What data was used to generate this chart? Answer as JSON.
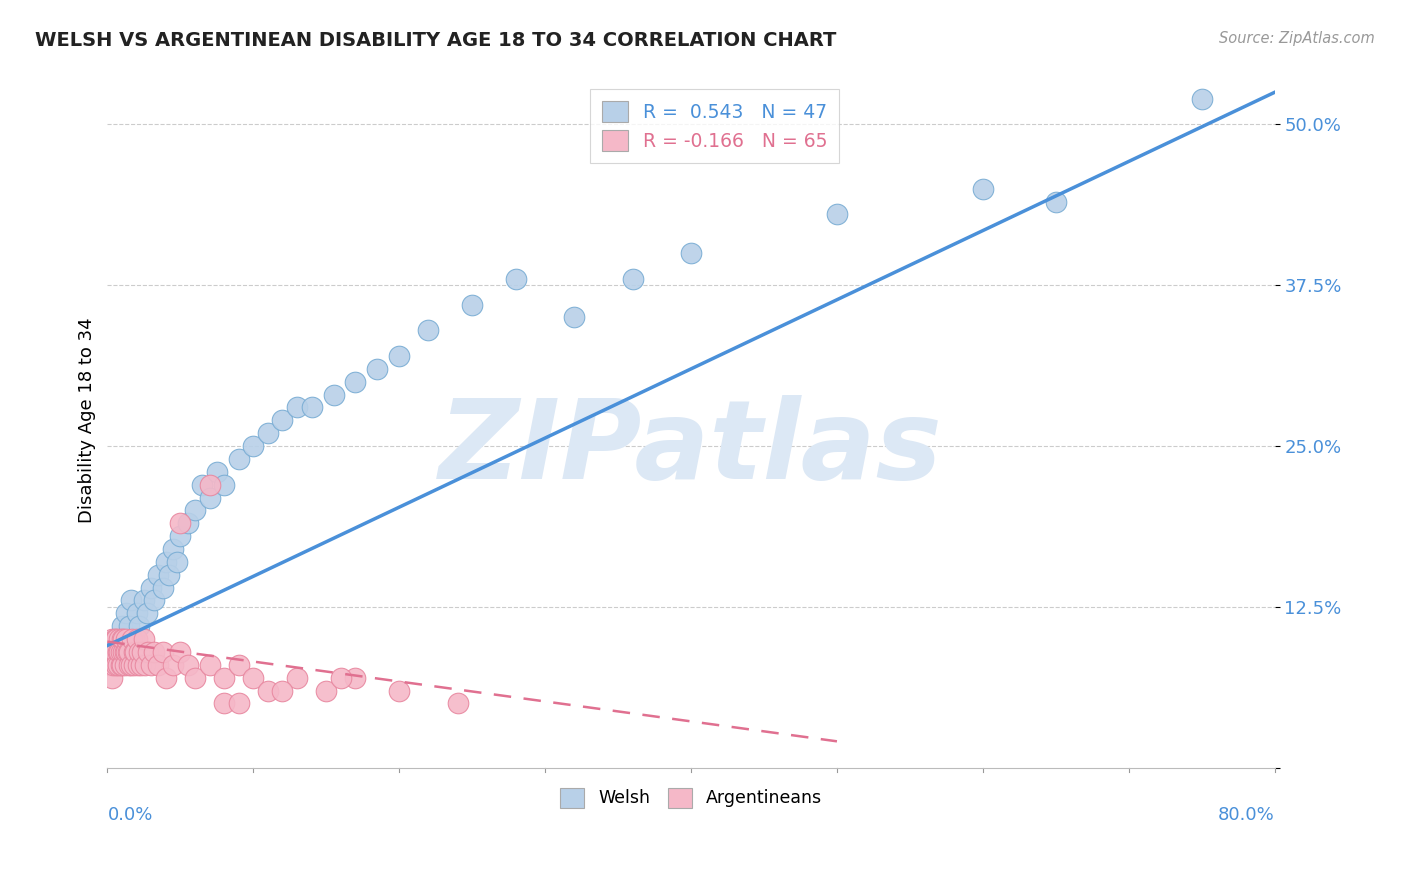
{
  "title": "WELSH VS ARGENTINEAN DISABILITY AGE 18 TO 34 CORRELATION CHART",
  "source_text": "Source: ZipAtlas.com",
  "ylabel": "Disability Age 18 to 34",
  "xlim": [
    0.0,
    0.8
  ],
  "ylim": [
    0.0,
    0.54
  ],
  "yticks": [
    0.0,
    0.125,
    0.25,
    0.375,
    0.5
  ],
  "ytick_labels": [
    "",
    "12.5%",
    "25.0%",
    "37.5%",
    "50.0%"
  ],
  "welsh_color": "#b8d0e8",
  "arg_color": "#f5b8c8",
  "welsh_edge": "#7aadd4",
  "arg_edge": "#e888a0",
  "line_welsh_color": "#4a90d9",
  "line_arg_color": "#e07090",
  "legend_welsh_label": "R =  0.543   N = 47",
  "legend_arg_label": "R = -0.166   N = 65",
  "watermark_text": "ZIPatlas",
  "watermark_color": "#dce8f5",
  "welsh_x": [
    0.005,
    0.008,
    0.01,
    0.012,
    0.013,
    0.015,
    0.016,
    0.018,
    0.02,
    0.022,
    0.025,
    0.027,
    0.03,
    0.032,
    0.035,
    0.038,
    0.04,
    0.042,
    0.045,
    0.048,
    0.05,
    0.055,
    0.06,
    0.065,
    0.07,
    0.075,
    0.08,
    0.09,
    0.1,
    0.11,
    0.12,
    0.13,
    0.14,
    0.155,
    0.17,
    0.185,
    0.2,
    0.22,
    0.25,
    0.28,
    0.32,
    0.36,
    0.4,
    0.5,
    0.6,
    0.65,
    0.75
  ],
  "welsh_y": [
    0.1,
    0.09,
    0.11,
    0.1,
    0.12,
    0.11,
    0.13,
    0.1,
    0.12,
    0.11,
    0.13,
    0.12,
    0.14,
    0.13,
    0.15,
    0.14,
    0.16,
    0.15,
    0.17,
    0.16,
    0.18,
    0.19,
    0.2,
    0.22,
    0.21,
    0.23,
    0.22,
    0.24,
    0.25,
    0.26,
    0.27,
    0.28,
    0.28,
    0.29,
    0.3,
    0.31,
    0.32,
    0.34,
    0.36,
    0.38,
    0.35,
    0.38,
    0.4,
    0.43,
    0.45,
    0.44,
    0.52
  ],
  "arg_x": [
    0.001,
    0.002,
    0.003,
    0.003,
    0.004,
    0.004,
    0.005,
    0.005,
    0.006,
    0.006,
    0.007,
    0.007,
    0.008,
    0.008,
    0.009,
    0.009,
    0.01,
    0.01,
    0.011,
    0.011,
    0.012,
    0.012,
    0.013,
    0.013,
    0.014,
    0.015,
    0.015,
    0.016,
    0.017,
    0.018,
    0.018,
    0.019,
    0.02,
    0.021,
    0.022,
    0.023,
    0.024,
    0.025,
    0.026,
    0.028,
    0.03,
    0.032,
    0.035,
    0.038,
    0.04,
    0.045,
    0.05,
    0.055,
    0.06,
    0.07,
    0.08,
    0.09,
    0.1,
    0.11,
    0.13,
    0.15,
    0.17,
    0.2,
    0.24,
    0.16,
    0.05,
    0.08,
    0.12,
    0.09,
    0.07
  ],
  "arg_y": [
    0.09,
    0.08,
    0.1,
    0.07,
    0.09,
    0.08,
    0.1,
    0.09,
    0.08,
    0.1,
    0.09,
    0.08,
    0.1,
    0.09,
    0.08,
    0.09,
    0.1,
    0.08,
    0.09,
    0.1,
    0.09,
    0.08,
    0.09,
    0.1,
    0.09,
    0.08,
    0.09,
    0.08,
    0.1,
    0.09,
    0.08,
    0.09,
    0.1,
    0.08,
    0.09,
    0.08,
    0.09,
    0.1,
    0.08,
    0.09,
    0.08,
    0.09,
    0.08,
    0.09,
    0.07,
    0.08,
    0.09,
    0.08,
    0.07,
    0.08,
    0.07,
    0.08,
    0.07,
    0.06,
    0.07,
    0.06,
    0.07,
    0.06,
    0.05,
    0.07,
    0.19,
    0.05,
    0.06,
    0.05,
    0.22
  ]
}
